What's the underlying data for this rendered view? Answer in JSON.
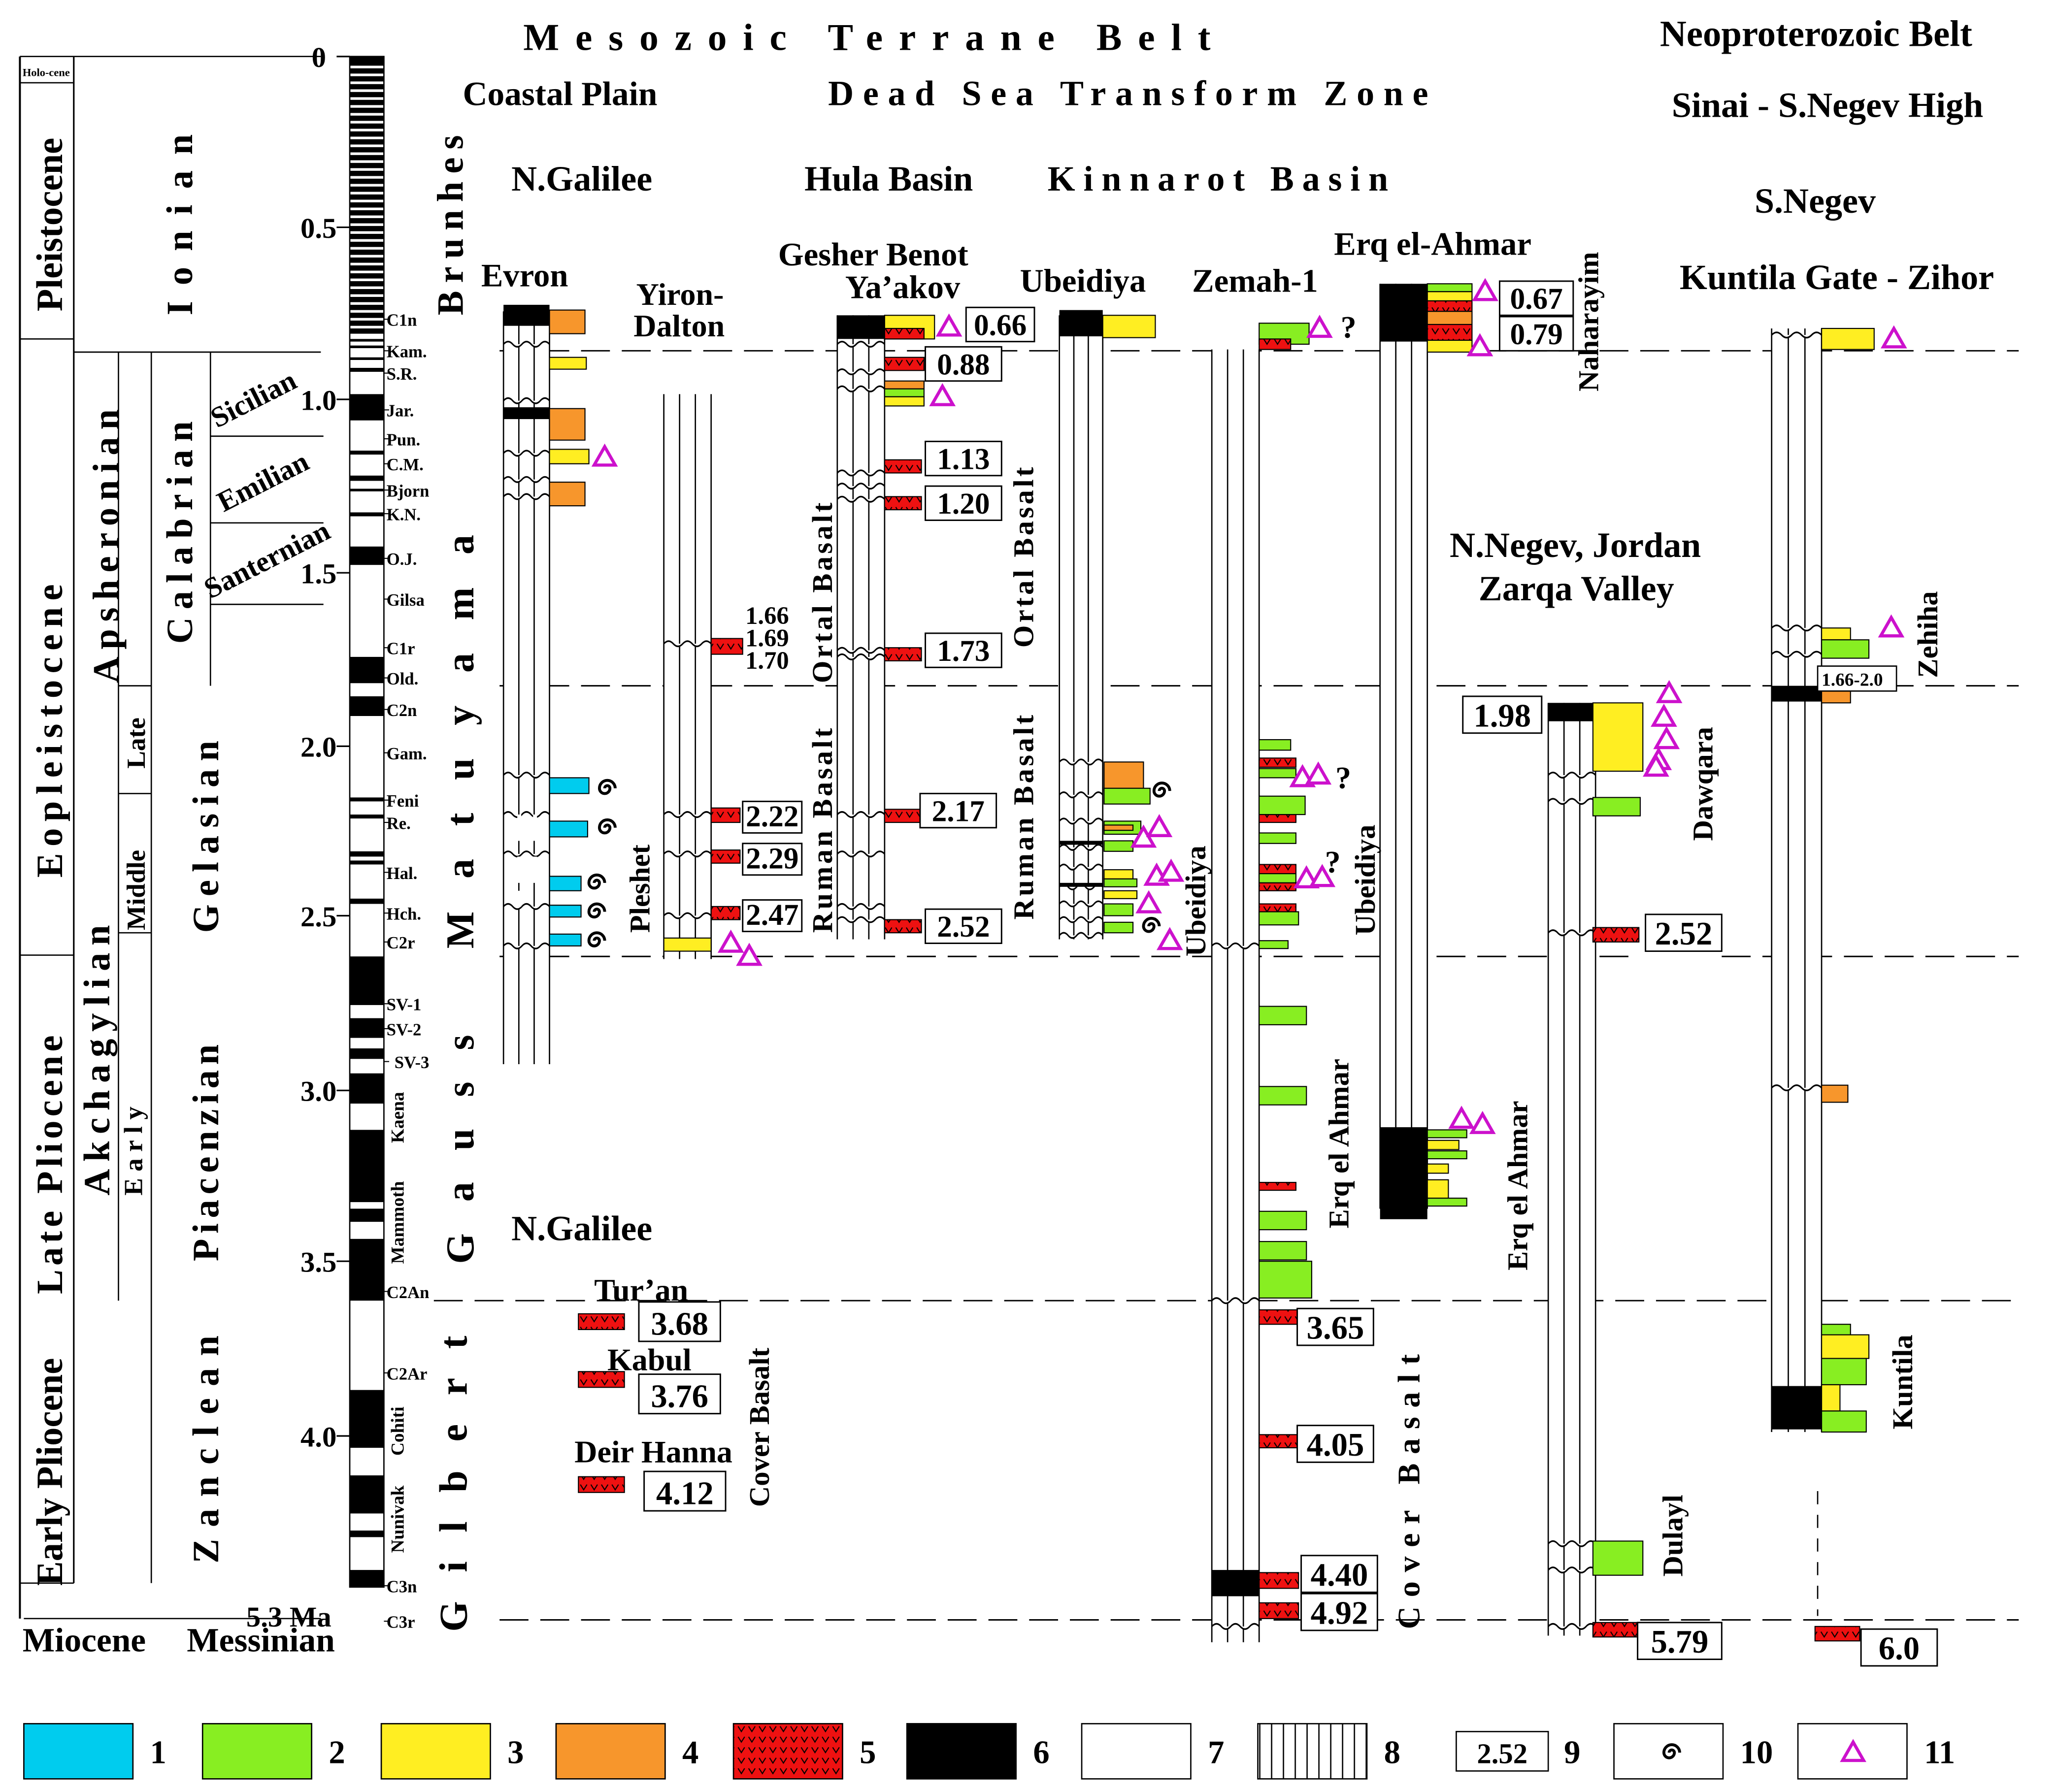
{
  "headers": {
    "mesozoic": "Mesozoic Terrane Belt",
    "neoproterozoic": "Neoproterozoic Belt",
    "coastal_plain": "Coastal Plain",
    "dead_sea": "Dead Sea Transform Zone",
    "sinai": "Sinai - S.Negev High",
    "n_galilee": "N.Galilee",
    "hula": "Hula Basin",
    "kinnarot": "Kinnarot Basin",
    "s_negev": "S.Negev",
    "kuntila_gate": "Kuntila Gate - Zihor",
    "n_negev": "N.Negev, Jordan",
    "zarqa": "Zarqa Valley",
    "n_galilee_lower": "N.Galilee"
  },
  "sections": {
    "evron": "Evron",
    "yiron_1": "Yiron-",
    "yiron_2": "Dalton",
    "gesher_1": "Gesher Benot",
    "gesher_2": "Ya’akov",
    "ubeidiya": "Ubeidiya",
    "zemah": "Zemah-1",
    "erq": "Erq el-Ahmar",
    "naharayim": "Naharayim"
  },
  "timescale": {
    "axis_labels": [
      "0",
      "0.5",
      "1.0",
      "1.5",
      "2.0",
      "2.5",
      "3.0",
      "3.5",
      "4.0",
      "5.3 Ma"
    ],
    "epochs": {
      "holocene": "Holo-cene",
      "pleistocene": "Pleistocene",
      "eopleistocene": "Eopleistocene",
      "late_pliocene": "Late Pliocene",
      "early_pliocene": "Early Pliocene",
      "miocene": "Miocene"
    },
    "regional_stages": {
      "ionian": "Ionian",
      "apsheronian": "Apsheronian",
      "akchagylian": "Akchagylian",
      "calabrian": "Calabrian",
      "gelasian": "Gelasian",
      "piacenzian": "Piacenzian",
      "zanclean": "Zanclean",
      "messinian": "Messinian",
      "sicilian": "Sicilian",
      "emilian": "Emilian",
      "santernian": "Santernian",
      "late": "Late",
      "middle": "Middle",
      "early": "Early"
    },
    "chrons": {
      "brunhes": "Brunhes",
      "matuyama": "Matuyama",
      "gauss": "Gauss",
      "gilbert": "Gilbert"
    },
    "subchrons": [
      "C1n",
      "Kam.",
      "S.R.",
      "Jar.",
      "Pun.",
      "C.M.",
      "Bjorn",
      "K.N.",
      "O.J.",
      "Gilsa",
      "C1r",
      "Old.",
      "C2n",
      "Gam.",
      "Feni",
      "Re.",
      "Hal.",
      "Hch.",
      "C2r",
      "SV-1",
      "SV-2",
      "SV-3",
      "Kaena",
      "Mammoth",
      "C2An",
      "C2Ar",
      "Cohiti",
      "Nunivak",
      "C3n",
      "C3r"
    ]
  },
  "vertical_labels": {
    "pleshet": "Pleshet",
    "ortal_1": "Ortal Basalt",
    "ruman_1": "Ruman Basalt",
    "ortal_2": "Ortal Basalt",
    "ruman_2": "Ruman Basalt",
    "ubeidiya_1": "Ubeidiya",
    "ubeidiya_2": "Ubeidiya",
    "erq_1": "Erq el Ahmar",
    "erq_2": "Erq el Ahmar",
    "cover_1": "Cover Basalt",
    "cover_2": "Cover Basalt",
    "dawqara": "Dawqara",
    "dulayl": "Dulayl",
    "zehiha": "Zehiha",
    "kuntila": "Kuntila"
  },
  "localities": {
    "turan": "Tur’an",
    "kabul": "Kabul",
    "deir_hanna": "Deir Hanna"
  },
  "ages": {
    "a066": "0.66",
    "a088": "0.88",
    "a113": "1.13",
    "a120": "1.20",
    "a173": "1.73",
    "a217": "2.17",
    "a252g": "2.52",
    "a222": "2.22",
    "a229": "2.29",
    "a247": "2.47",
    "a166": "1.66",
    "a169": "1.69",
    "a170": "1.70",
    "a067": "0.67",
    "a079": "0.79",
    "a198": "1.98",
    "a252j": "2.52",
    "a579": "5.79",
    "a60": "6.0",
    "a166_20": "1.66-2.0",
    "a368": "3.68",
    "a376": "3.76",
    "a412": "4.12",
    "a365": "3.65",
    "a405": "4.05",
    "a440": "4.40",
    "a492": "4.92"
  },
  "question_mark": "?",
  "legend": {
    "items": [
      "1",
      "2",
      "3",
      "4",
      "5",
      "6",
      "7",
      "8",
      "9",
      "10",
      "11"
    ],
    "sample_age": "2.52"
  },
  "colors": {
    "cyan": "#00ccee",
    "green": "#88ee22",
    "yellow": "#ffee22",
    "orange": "#f7962c",
    "red": "#ee1111",
    "magenta": "#cc11cc",
    "black": "#000000"
  }
}
